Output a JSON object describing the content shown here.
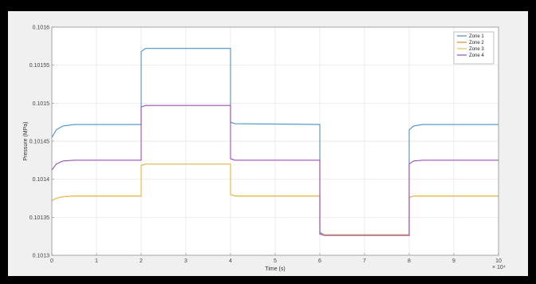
{
  "chart_data": {
    "type": "line",
    "xlabel": "Time (s)",
    "ylabel": "Pressure (MPa)",
    "x_exponent_label": "× 10⁴",
    "xlim": [
      0,
      10
    ],
    "ylim": [
      0.1013,
      0.1016
    ],
    "xticks": [
      0,
      1,
      2,
      3,
      4,
      5,
      6,
      7,
      8,
      9,
      10
    ],
    "xtick_labels": [
      "0",
      "1",
      "2",
      "3",
      "4",
      "5",
      "6",
      "7",
      "8",
      "9",
      "10"
    ],
    "yticks": [
      0.1013,
      0.10135,
      0.1014,
      0.10145,
      0.1015,
      0.10155,
      0.1016
    ],
    "ytick_labels": [
      "0.1013",
      "0.10135",
      "0.1014",
      "0.10145",
      "0.1015",
      "0.10155",
      "0.1016"
    ],
    "grid": true,
    "legend_position": "top-right",
    "series": [
      {
        "name": "Zone 1",
        "color": "#4a90c8",
        "x": [
          0,
          0.1,
          0.25,
          0.5,
          2,
          2,
          2.1,
          4,
          4,
          4.1,
          6,
          6,
          6.1,
          8,
          8,
          8.1,
          8.3,
          10
        ],
        "y": [
          0.101455,
          0.101465,
          0.10147,
          0.101472,
          0.101472,
          0.101568,
          0.101572,
          0.101572,
          0.101475,
          0.101473,
          0.101472,
          0.10133,
          0.101327,
          0.101327,
          0.101465,
          0.10147,
          0.101472,
          0.101472
        ]
      },
      {
        "name": "Zone 2",
        "color": "#e08a3c",
        "x": [
          0,
          0.1,
          0.25,
          0.5,
          2,
          2,
          2.1,
          4,
          4,
          4.1,
          6,
          6,
          6.1,
          8,
          8,
          8.1,
          8.3,
          10
        ],
        "y": [
          0.101372,
          0.101375,
          0.101377,
          0.101378,
          0.101378,
          0.101418,
          0.10142,
          0.10142,
          0.10138,
          0.101378,
          0.101378,
          0.101328,
          0.101327,
          0.101327,
          0.101376,
          0.101378,
          0.101378,
          0.101378
        ]
      },
      {
        "name": "Zone 3",
        "color": "#e8c050",
        "x": [
          0,
          0.1,
          0.25,
          0.5,
          2,
          2,
          2.1,
          4,
          4,
          4.1,
          6,
          6,
          6.1,
          8,
          8,
          8.1,
          8.3,
          10
        ],
        "y": [
          0.101372,
          0.101375,
          0.101377,
          0.101378,
          0.101378,
          0.101418,
          0.10142,
          0.10142,
          0.10138,
          0.101378,
          0.101378,
          0.101328,
          0.101327,
          0.101327,
          0.101376,
          0.101378,
          0.101378,
          0.101378
        ]
      },
      {
        "name": "Zone 4",
        "color": "#9b4fb0",
        "x": [
          0,
          0.1,
          0.25,
          0.5,
          2,
          2,
          2.1,
          4,
          4,
          4.1,
          6,
          6,
          6.1,
          8,
          8,
          8.1,
          8.3,
          10
        ],
        "y": [
          0.101412,
          0.10142,
          0.101424,
          0.101425,
          0.101425,
          0.101495,
          0.101497,
          0.101497,
          0.101427,
          0.101425,
          0.101425,
          0.101328,
          0.101326,
          0.101326,
          0.10142,
          0.101424,
          0.101425,
          0.101425
        ]
      }
    ]
  }
}
